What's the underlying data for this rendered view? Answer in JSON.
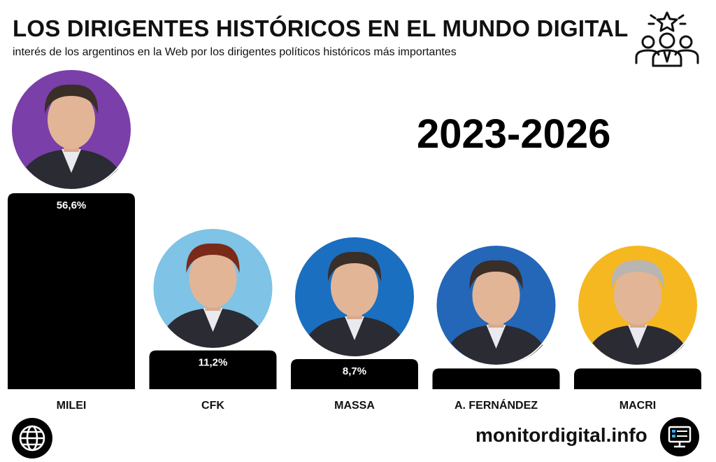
{
  "header": {
    "title": "LOS DIRIGENTES HISTÓRICOS EN EL MUNDO DIGITAL",
    "subtitle": "interés de los argentinos en la Web por los dirigentes políticos históricos más importantes"
  },
  "period": "2023-2026",
  "chart_data": {
    "type": "bar",
    "categories": [
      "MILEI",
      "CFK",
      "MASSA",
      "A. FERNÁNDEZ",
      "MACRI"
    ],
    "values": [
      56.6,
      11.2,
      8.7,
      6.0,
      6.0
    ],
    "data_labels": [
      "56,6%",
      "11,2%",
      "8,7%",
      "",
      ""
    ],
    "avatar_colors": [
      "#7a3fa8",
      "#7fc3e6",
      "#1a6fc0",
      "#2467b8",
      "#f6b820"
    ],
    "bar_color": "#000000"
  },
  "footer": {
    "site": "monitordigital.info",
    "left_icon": "globe-icon",
    "right_icon": "monitor-icon"
  },
  "icons": {
    "header": "people-star-icon"
  }
}
